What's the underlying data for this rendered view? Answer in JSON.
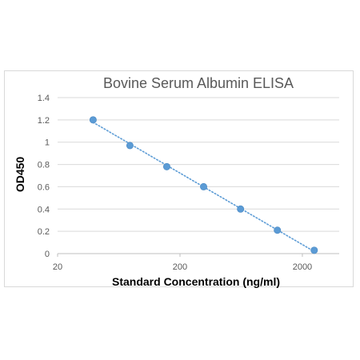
{
  "chart_data": {
    "type": "scatter",
    "title": "Bovine Serum Albumin ELISA",
    "xlabel": "Standard Concentration (ng/ml)",
    "ylabel": "OD450",
    "x_scale": "log",
    "xlim": [
      20,
      4000
    ],
    "ylim": [
      0,
      1.4
    ],
    "x_ticks": [
      20,
      200,
      2000
    ],
    "x_tick_labels": [
      "20",
      "200",
      "2000"
    ],
    "y_ticks": [
      0,
      0.2,
      0.4,
      0.6,
      0.8,
      1,
      1.2,
      1.4
    ],
    "y_tick_labels": [
      "0",
      "0.2",
      "0.4",
      "0.6",
      "0.8",
      "1",
      "1.2",
      "1.4"
    ],
    "grid": "horizontal",
    "legend": "none",
    "trendline": "dotted",
    "series": [
      {
        "color": "#5b9bd5",
        "x": [
          39,
          78,
          156,
          312,
          625,
          1250,
          2500
        ],
        "y": [
          1.2,
          0.97,
          0.78,
          0.6,
          0.4,
          0.21,
          0.03
        ]
      }
    ]
  }
}
